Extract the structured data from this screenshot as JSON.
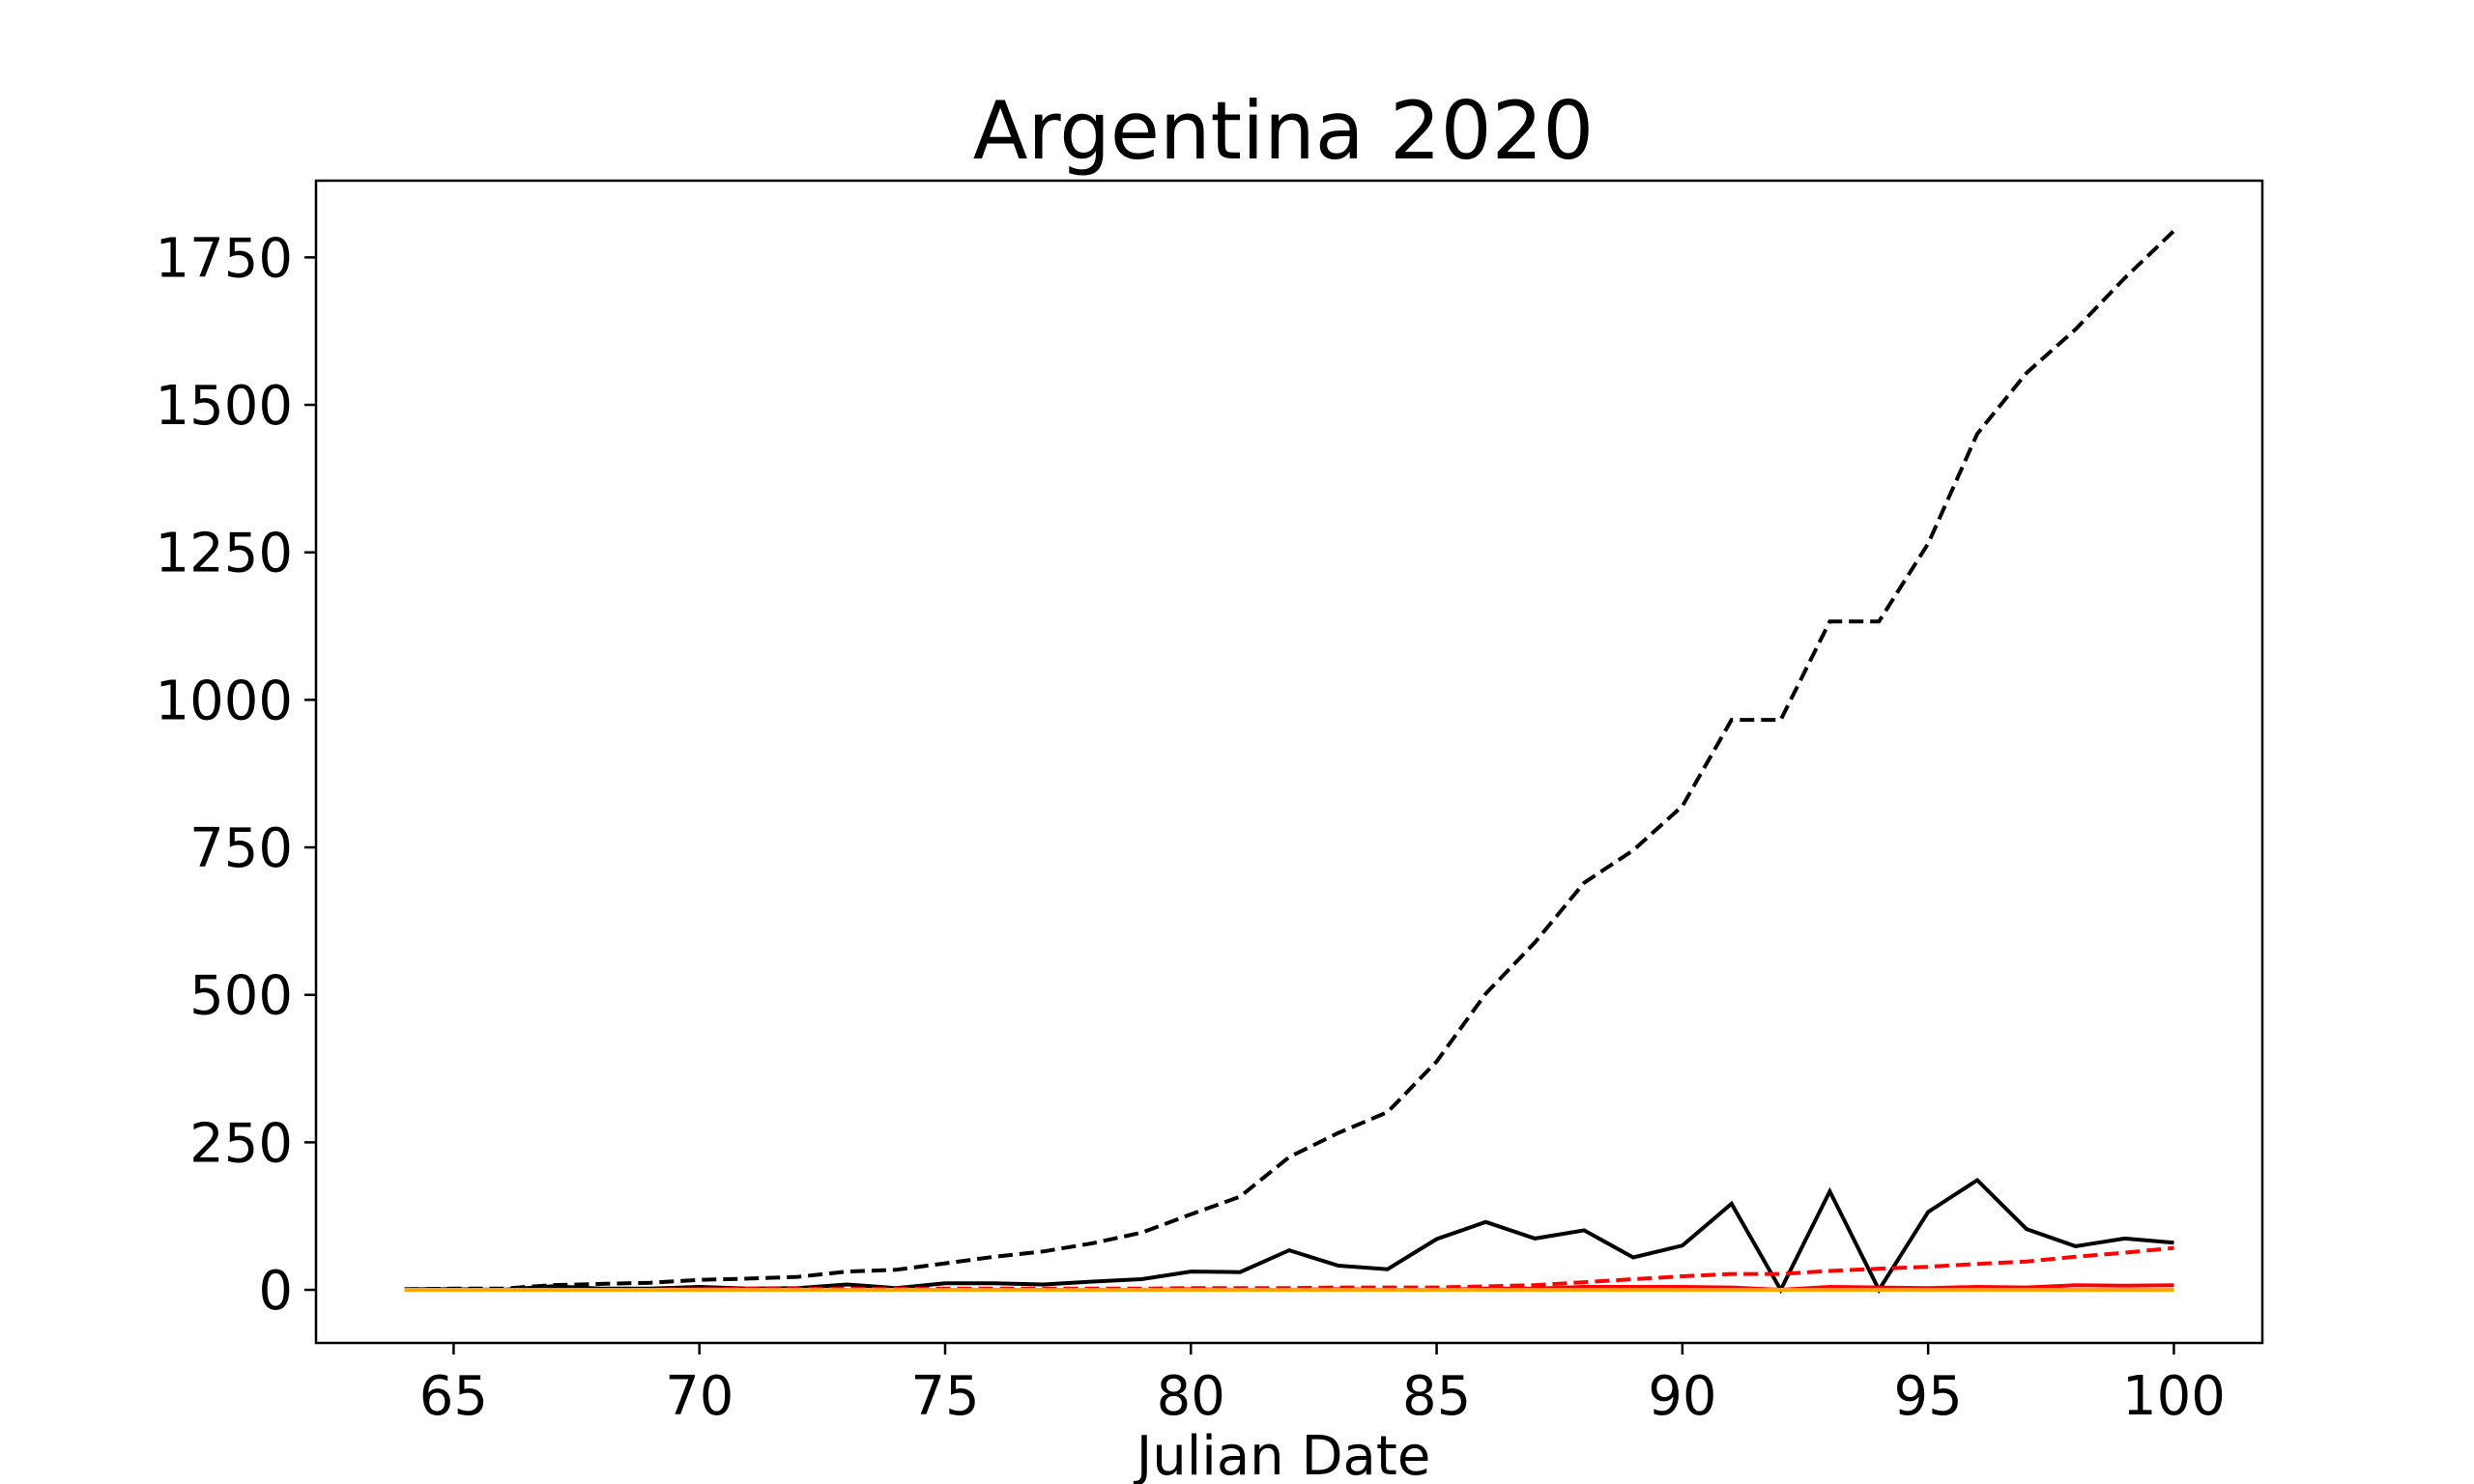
{
  "chart_data": {
    "type": "line",
    "title": "Argentina 2020",
    "xlabel": "Julian Date",
    "ylabel": "",
    "xlim": [
      62.2,
      101.8
    ],
    "ylim": [
      -90,
      1880
    ],
    "xticks": [
      65,
      70,
      75,
      80,
      85,
      90,
      95,
      100
    ],
    "yticks": [
      0,
      250,
      500,
      750,
      1000,
      1250,
      1500,
      1750
    ],
    "grid": false,
    "legend": "none",
    "x": [
      64,
      65,
      66,
      67,
      68,
      69,
      70,
      71,
      72,
      73,
      74,
      75,
      76,
      77,
      78,
      79,
      80,
      81,
      82,
      83,
      84,
      85,
      86,
      87,
      88,
      89,
      90,
      91,
      92,
      93,
      94,
      95,
      96,
      97,
      98,
      99,
      100
    ],
    "series": [
      {
        "color": "#000000",
        "style": "dashed",
        "values": [
          1,
          2,
          2,
          8,
          10,
          12,
          17,
          19,
          22,
          31,
          34,
          45,
          56,
          65,
          79,
          97,
          128,
          158,
          225,
          266,
          301,
          387,
          502,
          589,
          690,
          745,
          820,
          966,
          966,
          1133,
          1133,
          1265,
          1451,
          1554,
          1628,
          1715,
          1795
        ]
      },
      {
        "color": "#000000",
        "style": "solid",
        "values": [
          1,
          1,
          0,
          6,
          2,
          2,
          5,
          2,
          3,
          9,
          3,
          11,
          11,
          9,
          14,
          18,
          31,
          30,
          67,
          41,
          35,
          86,
          115,
          87,
          101,
          55,
          75,
          146,
          0,
          167,
          0,
          132,
          186,
          103,
          74,
          87,
          80
        ]
      },
      {
        "color": "#ff0000",
        "style": "dashed",
        "values": [
          0,
          0,
          0,
          0,
          0,
          0,
          1,
          2,
          2,
          2,
          2,
          2,
          2,
          2,
          2,
          2,
          3,
          3,
          3,
          4,
          4,
          4,
          6,
          8,
          13,
          18,
          23,
          27,
          27,
          32,
          36,
          39,
          44,
          48,
          56,
          63,
          71
        ]
      },
      {
        "color": "#ff0000",
        "style": "solid",
        "values": [
          0,
          0,
          0,
          0,
          0,
          0,
          1,
          1,
          0,
          0,
          0,
          0,
          0,
          0,
          0,
          0,
          1,
          0,
          0,
          1,
          0,
          0,
          2,
          2,
          5,
          5,
          5,
          4,
          0,
          5,
          4,
          3,
          5,
          4,
          8,
          7,
          8
        ]
      },
      {
        "color": "#ffa500",
        "style": "solid",
        "values": [
          0,
          0,
          0,
          0,
          0,
          0,
          0,
          0,
          0,
          0,
          0,
          0,
          0,
          0,
          0,
          0,
          0,
          0,
          0,
          0,
          0,
          0,
          0,
          0,
          0,
          0,
          0,
          0,
          0,
          0,
          0,
          0,
          0,
          0,
          0,
          0,
          0
        ]
      }
    ]
  }
}
